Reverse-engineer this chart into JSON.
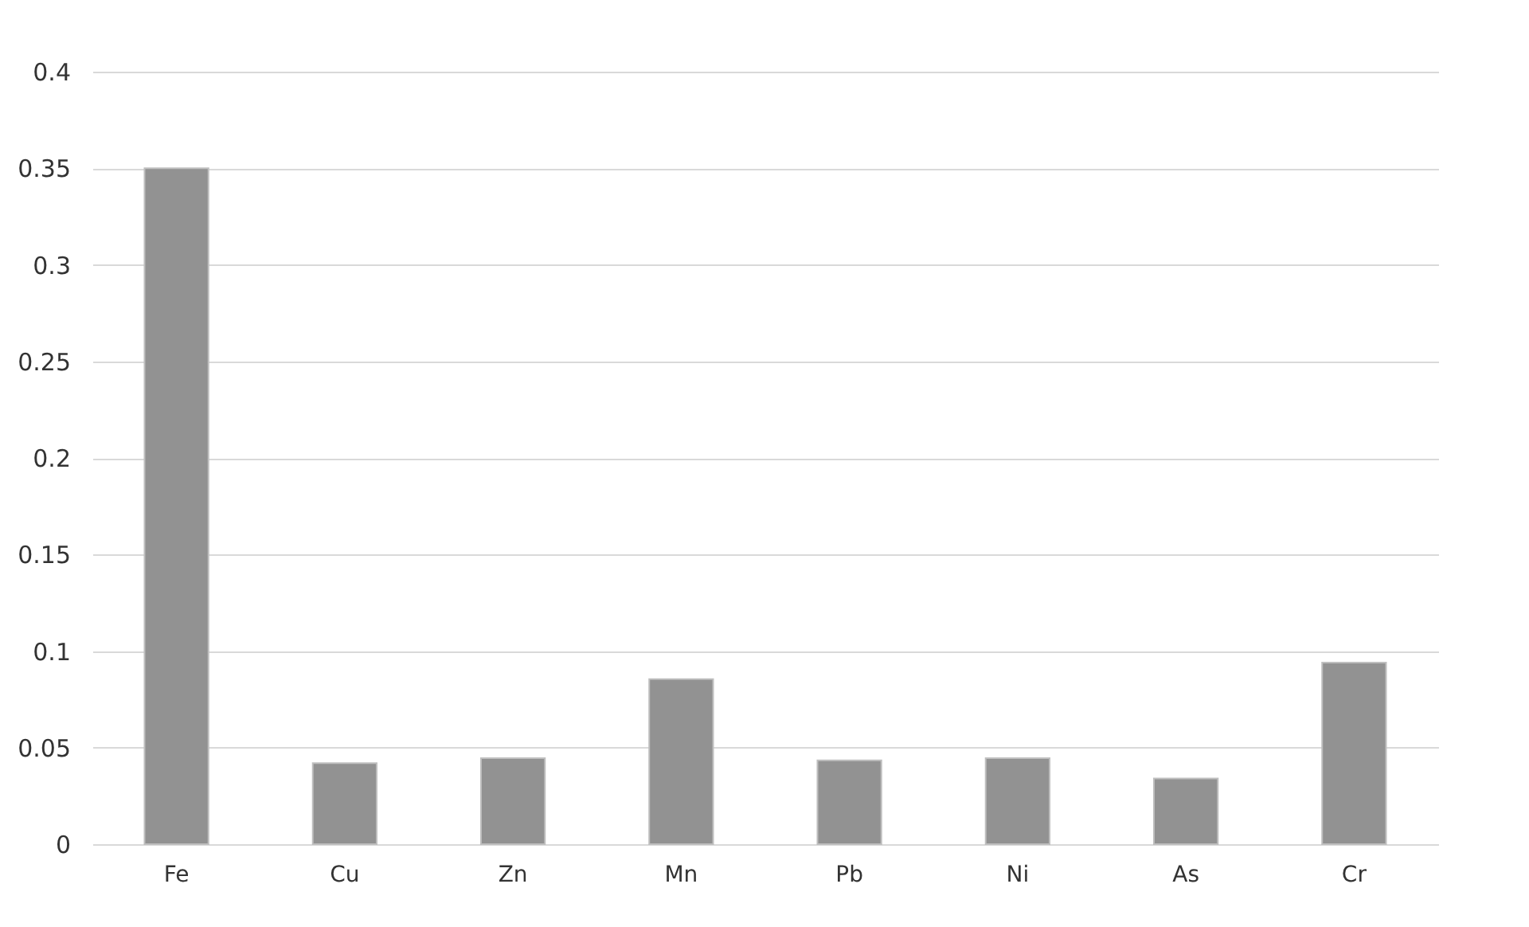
{
  "chart_data": {
    "type": "bar",
    "categories": [
      "Fe",
      "Cu",
      "Zn",
      "Mn",
      "Pb",
      "Ni",
      "As",
      "Cr"
    ],
    "values": [
      0.35,
      0.042,
      0.0445,
      0.0855,
      0.0434,
      0.0445,
      0.034,
      0.094
    ],
    "color": "#929292",
    "ylim": [
      0,
      0.4
    ],
    "yticks": [
      0,
      {
        "value": 0.05,
        "label": "0.05"
      },
      {
        "value": 0.1,
        "label": "0.1"
      },
      {
        "value": 0.15,
        "label": "0.15"
      },
      {
        "value": 0.2,
        "label": "0.2"
      },
      {
        "value": 0.25,
        "label": "0.25"
      },
      {
        "value": 0.3,
        "label": "0.3"
      },
      {
        "value": 0.35,
        "label": "0.35"
      },
      {
        "value": 0.4,
        "label": "0.4"
      }
    ],
    "grid": "y"
  }
}
